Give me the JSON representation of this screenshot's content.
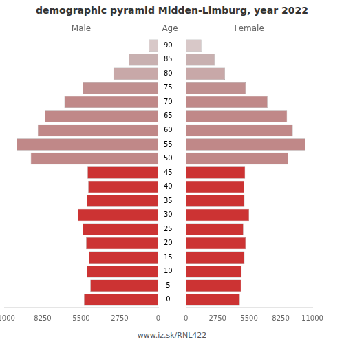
{
  "chart_data": {
    "type": "bar",
    "orientation": "horizontal",
    "title": "demographic pyramid Midden-Limburg, year 2022",
    "y_label": "Age",
    "annotations": [
      "www.iz.sk/RNL422"
    ],
    "categories": [
      "0",
      "5",
      "10",
      "15",
      "20",
      "25",
      "30",
      "35",
      "40",
      "45",
      "50",
      "55",
      "60",
      "65",
      "70",
      "75",
      "80",
      "85",
      "90"
    ],
    "series": [
      {
        "name": "Male",
        "values": [
          5300,
          4850,
          5100,
          4950,
          5150,
          5400,
          5750,
          5100,
          5000,
          5050,
          9100,
          10100,
          8600,
          8100,
          6700,
          5400,
          3200,
          2100,
          650
        ],
        "colors": [
          "#cc3333",
          "#cc3333",
          "#cc3333",
          "#cc3333",
          "#cc3333",
          "#cc3333",
          "#cc3333",
          "#cc3333",
          "#cc3333",
          "#cc3333",
          "#c08888",
          "#c08888",
          "#c08888",
          "#c08888",
          "#c08888",
          "#c09090",
          "#c8a8a8",
          "#c8b0b0",
          "#d8c8c8"
        ]
      },
      {
        "name": "Female",
        "values": [
          4700,
          4800,
          4850,
          5100,
          5200,
          5000,
          5500,
          5100,
          5050,
          5150,
          8900,
          10400,
          9300,
          8800,
          7100,
          5200,
          3400,
          2500,
          1350
        ],
        "colors": [
          "#cc3333",
          "#cc3333",
          "#cc3333",
          "#cc3333",
          "#cc3333",
          "#cc3333",
          "#cc3333",
          "#cc3333",
          "#cc3333",
          "#cc3333",
          "#c08888",
          "#c08888",
          "#c08888",
          "#c08888",
          "#c08888",
          "#c09090",
          "#c8a8a8",
          "#c8b0b0",
          "#d8c8c8"
        ]
      }
    ],
    "xlim": [
      0,
      11000
    ],
    "xticks": [
      0,
      2750,
      5500,
      8250,
      11000
    ],
    "grid": false
  }
}
